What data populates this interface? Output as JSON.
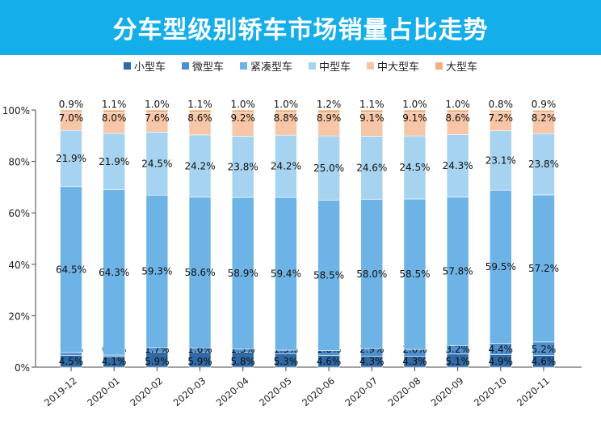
{
  "chart_data": {
    "type": "bar",
    "stacked": true,
    "title": "分车型级别轿车市场销量占比走势",
    "xlabel": "",
    "ylabel": "",
    "ylim": [
      0,
      100
    ],
    "y_ticks": [
      "0%",
      "20%",
      "40%",
      "60%",
      "80%",
      "100%"
    ],
    "legend_position": "top",
    "categories": [
      "2019-12",
      "2020-01",
      "2020-02",
      "2020-03",
      "2020-04",
      "2020-05",
      "2020-06",
      "2020-07",
      "2020-08",
      "2020-09",
      "2020-10",
      "2020-11"
    ],
    "series": [
      {
        "name": "小型车",
        "color": "#2f6aa6",
        "values": [
          4.5,
          4.1,
          5.9,
          5.9,
          5.8,
          5.3,
          4.6,
          4.3,
          4.3,
          5.1,
          4.9,
          4.6
        ]
      },
      {
        "name": "微型车",
        "color": "#4d8fcf",
        "values": [
          1.2,
          0.6,
          1.7,
          1.6,
          1.3,
          1.3,
          1.8,
          2.9,
          2.6,
          3.2,
          4.4,
          5.2
        ]
      },
      {
        "name": "紧凑型车",
        "color": "#6db3e6",
        "values": [
          64.5,
          64.3,
          59.3,
          58.6,
          58.9,
          59.4,
          58.5,
          58.0,
          58.5,
          57.8,
          59.5,
          57.2
        ]
      },
      {
        "name": "中型车",
        "color": "#a6d3ef",
        "values": [
          21.9,
          21.9,
          24.5,
          24.2,
          23.8,
          24.2,
          25.0,
          24.6,
          24.5,
          24.3,
          23.1,
          23.8
        ]
      },
      {
        "name": "中大型车",
        "color": "#f6c6a6",
        "values": [
          7.0,
          8.0,
          7.6,
          8.6,
          9.2,
          8.8,
          8.9,
          9.1,
          9.1,
          8.6,
          7.2,
          8.2
        ]
      },
      {
        "name": "大型车",
        "color": "#f1b07e",
        "values": [
          0.9,
          1.1,
          1.0,
          1.1,
          1.0,
          1.0,
          1.2,
          1.1,
          1.0,
          1.0,
          0.8,
          0.9
        ]
      }
    ]
  }
}
